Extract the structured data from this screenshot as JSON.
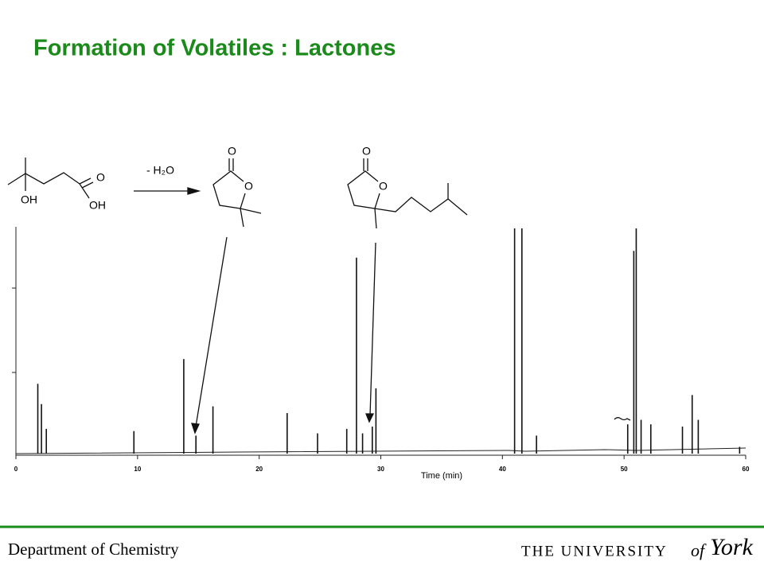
{
  "title": "Formation of Volatiles : Lactones",
  "scheme": {
    "acid_o": "O",
    "acid_oh1": "OH",
    "acid_oh2": "OH",
    "reagent": "- H₂O",
    "lactone1_carbonyl": "O",
    "lactone1_ring": "O",
    "lactone2_carbonyl": "O",
    "lactone2_ring": "O"
  },
  "chart_data": {
    "type": "stem",
    "x_label": "Time (min)",
    "x": [
      1.8,
      2.1,
      2.5,
      9.7,
      13.8,
      14.8,
      16.2,
      22.3,
      24.8,
      27.2,
      28.0,
      28.5,
      29.3,
      29.6,
      41.0,
      41.6,
      42.8,
      50.3,
      50.8,
      51.0,
      51.4,
      52.2,
      54.8,
      55.6,
      56.1,
      59.5
    ],
    "values": [
      31,
      22,
      11,
      10,
      42,
      8,
      21,
      18,
      9,
      11,
      87,
      9,
      12,
      29,
      100,
      100,
      8,
      13,
      90,
      100,
      15,
      13,
      12,
      26,
      15,
      3
    ],
    "color": "#111111",
    "xlim": [
      0,
      60
    ],
    "xticks": [
      0,
      10,
      20,
      30,
      40,
      50,
      60
    ],
    "ylim": [
      0,
      100
    ]
  },
  "footer": {
    "department": "Department of Chemistry",
    "university": "THE UNIVERSITY",
    "of": "of",
    "york": "York"
  }
}
